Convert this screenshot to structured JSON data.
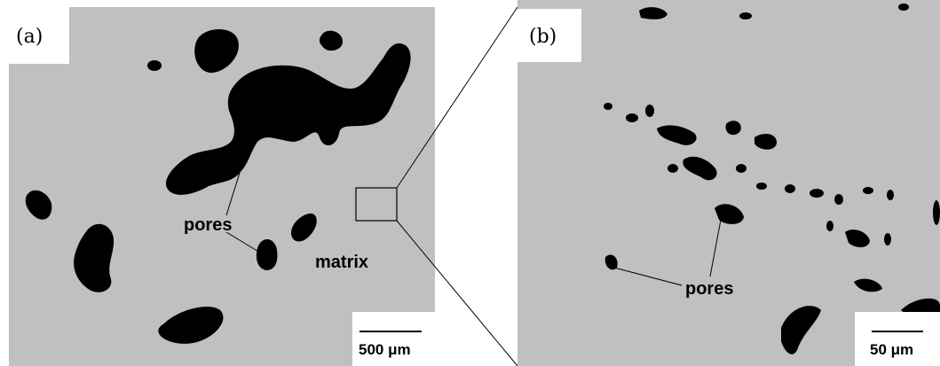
{
  "panels": [
    {
      "label": "(a)",
      "annotations": [
        "pores",
        "matrix"
      ],
      "scale_bar": "500 μm"
    },
    {
      "label": "(b)",
      "annotations": [
        "pores"
      ],
      "scale_bar": "50 μm"
    }
  ]
}
